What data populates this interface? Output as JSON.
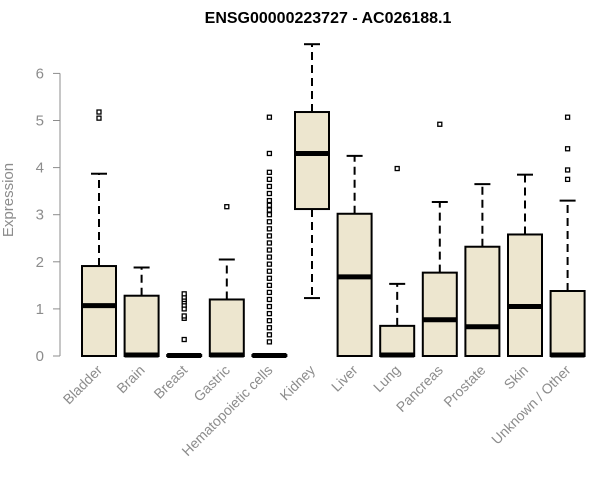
{
  "chart_data": {
    "type": "box",
    "title": "ENSG00000223727 - AC026188.1",
    "xlabel": "",
    "ylabel": "Expression",
    "ylim": [
      0,
      6.5
    ],
    "yticks": [
      0,
      1,
      2,
      3,
      4,
      5,
      6
    ],
    "ytick_labels": [
      "0",
      "1",
      "2",
      "3",
      "4",
      "5",
      "6"
    ],
    "grid": false,
    "colors": {
      "box_fill": "#ede6cf",
      "box_stroke": "#000000",
      "axis": "#8c8c8c"
    },
    "categories": [
      "Bladder",
      "Brain",
      "Breast",
      "Gastric",
      "Hematopoietic cells",
      "Kidney",
      "Liver",
      "Lung",
      "Pancreas",
      "Prostate",
      "Skin",
      "Unknown / Other"
    ],
    "boxes": [
      {
        "category": "Bladder",
        "lower_whisker": 0,
        "q1": 0,
        "median": 1.07,
        "q3": 1.91,
        "upper_whisker": 3.87,
        "outliers": [
          5.05,
          5.18
        ]
      },
      {
        "category": "Brain",
        "lower_whisker": 0,
        "q1": 0,
        "median": 0.02,
        "q3": 1.28,
        "upper_whisker": 1.88,
        "outliers": []
      },
      {
        "category": "Breast",
        "lower_whisker": 0,
        "q1": 0,
        "median": 0.01,
        "q3": 0.02,
        "upper_whisker": 0.04,
        "outliers": [
          0.35,
          0.8,
          0.85,
          1.0,
          1.08,
          1.15,
          1.2,
          1.25,
          1.32
        ]
      },
      {
        "category": "Gastric",
        "lower_whisker": 0,
        "q1": 0,
        "median": 0.02,
        "q3": 1.2,
        "upper_whisker": 2.05,
        "outliers": [
          3.17
        ]
      },
      {
        "category": "Hematopoietic cells",
        "lower_whisker": 0,
        "q1": 0,
        "median": 0.01,
        "q3": 0.02,
        "upper_whisker": 0.04,
        "outliers": [
          0.3,
          0.45,
          0.6,
          0.75,
          0.9,
          1.05,
          1.2,
          1.35,
          1.5,
          1.65,
          1.8,
          1.95,
          2.1,
          2.25,
          2.4,
          2.55,
          2.7,
          2.85,
          3.0,
          3.1,
          3.2,
          3.3,
          3.45,
          3.6,
          3.75,
          3.9,
          4.3,
          5.07
        ]
      },
      {
        "category": "Kidney",
        "lower_whisker": 1.23,
        "q1": 3.12,
        "median": 4.3,
        "q3": 5.18,
        "upper_whisker": 6.62,
        "outliers": []
      },
      {
        "category": "Liver",
        "lower_whisker": 0,
        "q1": 0,
        "median": 1.68,
        "q3": 3.02,
        "upper_whisker": 4.25,
        "outliers": []
      },
      {
        "category": "Lung",
        "lower_whisker": 0,
        "q1": 0,
        "median": 0.02,
        "q3": 0.64,
        "upper_whisker": 1.53,
        "outliers": [
          3.98
        ]
      },
      {
        "category": "Pancreas",
        "lower_whisker": 0,
        "q1": 0,
        "median": 0.77,
        "q3": 1.77,
        "upper_whisker": 3.27,
        "outliers": [
          4.92
        ]
      },
      {
        "category": "Prostate",
        "lower_whisker": 0,
        "q1": 0,
        "median": 0.62,
        "q3": 2.32,
        "upper_whisker": 3.65,
        "outliers": []
      },
      {
        "category": "Skin",
        "lower_whisker": 0,
        "q1": 0,
        "median": 1.05,
        "q3": 2.58,
        "upper_whisker": 3.85,
        "outliers": []
      },
      {
        "category": "Unknown / Other",
        "lower_whisker": 0,
        "q1": 0,
        "median": 0.02,
        "q3": 1.38,
        "upper_whisker": 3.3,
        "outliers": [
          3.75,
          3.95,
          4.4,
          5.07
        ]
      }
    ]
  }
}
